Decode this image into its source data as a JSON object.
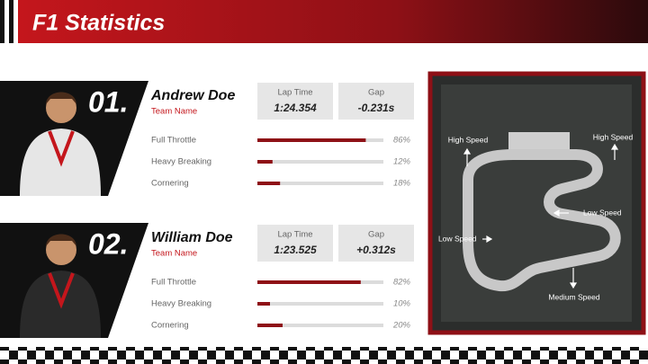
{
  "header": {
    "title": "F1 Statistics"
  },
  "drivers": [
    {
      "position": "01.",
      "name": "Andrew Doe",
      "team": "Team Name",
      "lap_time_label": "Lap Time",
      "lap_time": "1:24.354",
      "gap_label": "Gap",
      "gap": "-0.231s",
      "stats": [
        {
          "label": "Full Throttle",
          "value": 86,
          "value_label": "86%"
        },
        {
          "label": "Heavy Breaking",
          "value": 12,
          "value_label": "12%"
        },
        {
          "label": "Cornering",
          "value": 18,
          "value_label": "18%"
        }
      ]
    },
    {
      "position": "02.",
      "name": "William Doe",
      "team": "Team Name",
      "lap_time_label": "Lap Time",
      "lap_time": "1:23.525",
      "gap_label": "Gap",
      "gap": "+0.312s",
      "stats": [
        {
          "label": "Full Throttle",
          "value": 82,
          "value_label": "82%"
        },
        {
          "label": "Heavy Breaking",
          "value": 10,
          "value_label": "10%"
        },
        {
          "label": "Cornering",
          "value": 20,
          "value_label": "20%"
        }
      ]
    }
  ],
  "track": {
    "labels": [
      "High Speed",
      "High Speed",
      "Low Speed",
      "Low Speed",
      "Medium Speed"
    ]
  }
}
